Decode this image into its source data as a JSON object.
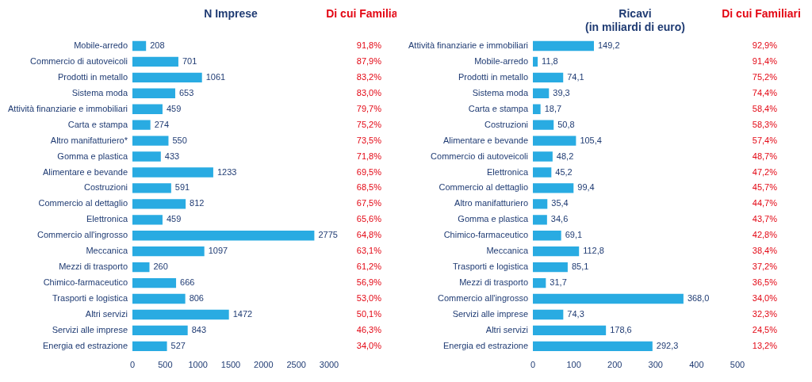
{
  "chart_data": [
    {
      "type": "bar",
      "orientation": "horizontal",
      "title": "N Imprese",
      "categories": [
        "Mobile-arredo",
        "Commercio di autoveicoli",
        "Prodotti in metallo",
        "Sistema moda",
        "Attività finanziarie e immobiliari",
        "Carta e stampa",
        "Altro manifatturiero*",
        "Gomma e plastica",
        "Alimentare e bevande",
        "Costruzioni",
        "Commercio al dettaglio",
        "Elettronica",
        "Commercio all'ingrosso",
        "Meccanica",
        "Mezzi di trasporto",
        "Chimico-farmaceutico",
        "Trasporti e logistica",
        "Altri servizi",
        "Servizi alle imprese",
        "Energia ed estrazione"
      ],
      "values": [
        208,
        701,
        1061,
        653,
        459,
        274,
        550,
        433,
        1233,
        591,
        812,
        459,
        2775,
        1097,
        260,
        666,
        806,
        1472,
        843,
        527
      ],
      "color": "#29abe2",
      "data_labels": true,
      "grid": false,
      "xlim": [
        0,
        3000
      ],
      "xticks": [
        0,
        500,
        1000,
        1500,
        2000,
        2500,
        3000
      ],
      "share_title": "Di cui Familiari",
      "share_values": [
        91.8,
        87.9,
        83.2,
        83.0,
        79.7,
        75.2,
        73.5,
        71.8,
        69.5,
        68.5,
        67.5,
        65.6,
        64.8,
        63.1,
        61.2,
        56.9,
        53.0,
        50.1,
        46.3,
        34.0
      ],
      "share_value_labels": [
        "91,8%",
        "87,9%",
        "83,2%",
        "83,0%",
        "79,7%",
        "75,2%",
        "73,5%",
        "71,8%",
        "69,5%",
        "68,5%",
        "67,5%",
        "65,6%",
        "64,8%",
        "63,1%",
        "61,2%",
        "56,9%",
        "53,0%",
        "50,1%",
        "46,3%",
        "34,0%"
      ]
    },
    {
      "type": "bar",
      "orientation": "horizontal",
      "title": "Ricavi",
      "subtitle": "(in miliardi di euro)",
      "categories": [
        "Attività finanziarie e immobiliari",
        "Mobile-arredo",
        "Prodotti in metallo",
        "Sistema moda",
        "Carta e stampa",
        "Costruzioni",
        "Alimentare e bevande",
        "Commercio di autoveicoli",
        "Elettronica",
        "Commercio al dettaglio",
        "Altro manifatturiero",
        "Gomma e plastica",
        "Chimico-farmaceutico",
        "Meccanica",
        "Trasporti e logistica",
        "Mezzi di trasporto",
        "Commercio all'ingrosso",
        "Servizi alle imprese",
        "Altri servizi",
        "Energia ed estrazione"
      ],
      "values": [
        149.2,
        11.8,
        74.1,
        39.3,
        18.7,
        50.8,
        105.4,
        48.2,
        45.2,
        99.4,
        35.4,
        34.6,
        69.1,
        112.8,
        85.1,
        31.7,
        368.0,
        74.3,
        178.6,
        292.3
      ],
      "value_labels": [
        "149,2",
        "11,8",
        "74,1",
        "39,3",
        "18,7",
        "50,8",
        "105,4",
        "48,2",
        "45,2",
        "99,4",
        "35,4",
        "34,6",
        "69,1",
        "112,8",
        "85,1",
        "31,7",
        "368,0",
        "74,3",
        "178,6",
        "292,3"
      ],
      "color": "#29abe2",
      "data_labels": true,
      "grid": false,
      "xlim": [
        0,
        500
      ],
      "xticks": [
        0,
        100,
        200,
        300,
        400,
        500
      ],
      "share_title": "Di cui Familiari",
      "share_values": [
        92.9,
        91.4,
        75.2,
        74.4,
        58.4,
        58.3,
        57.4,
        48.7,
        47.2,
        45.7,
        44.7,
        43.7,
        42.8,
        38.4,
        37.2,
        36.5,
        34.0,
        32.3,
        24.5,
        13.2
      ],
      "share_value_labels": [
        "92,9%",
        "91,4%",
        "75,2%",
        "74,4%",
        "58,4%",
        "58,3%",
        "57,4%",
        "48,7%",
        "47,2%",
        "45,7%",
        "44,7%",
        "43,7%",
        "42,8%",
        "38,4%",
        "37,2%",
        "36,5%",
        "34,0%",
        "32,3%",
        "24,5%",
        "13,2%"
      ]
    }
  ]
}
